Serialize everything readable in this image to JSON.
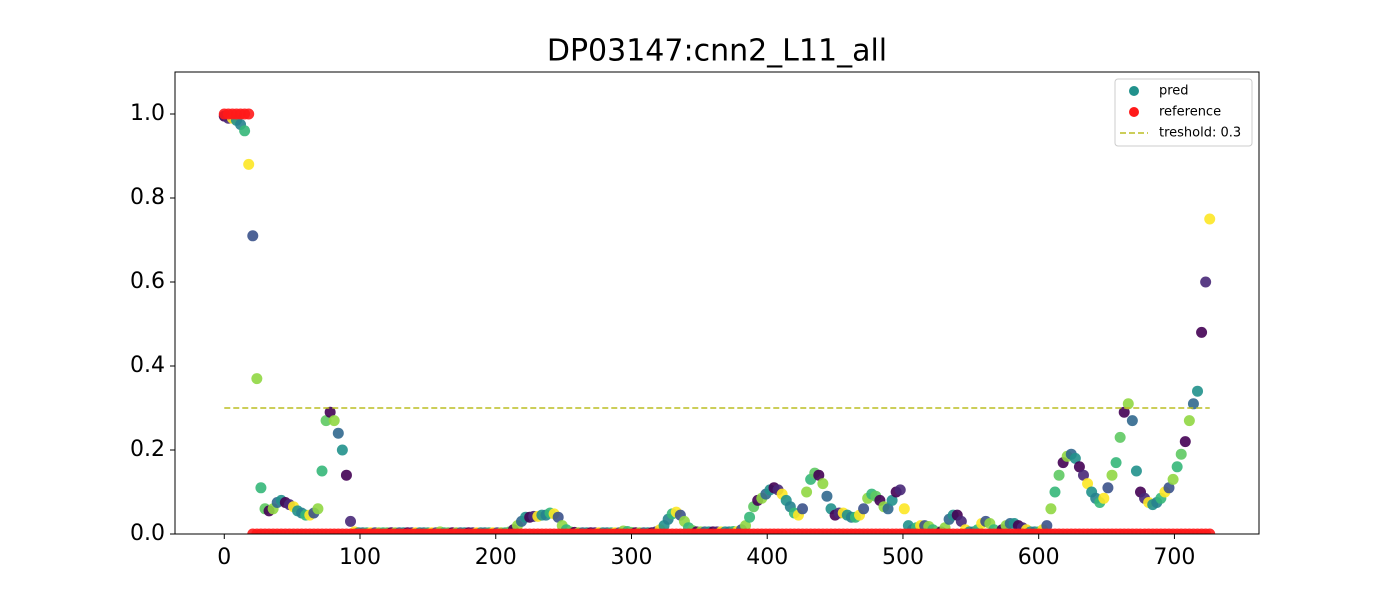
{
  "chart_data": {
    "type": "scatter",
    "title": "DP03147:cnn2_L11_all",
    "x": [
      0,
      3,
      6,
      9,
      12,
      15,
      18,
      21,
      24,
      27,
      30,
      33,
      36,
      39,
      42,
      45,
      48,
      51,
      54,
      57,
      60,
      63,
      66,
      69,
      72,
      75,
      78,
      81,
      84,
      87,
      90,
      93,
      96,
      99,
      102,
      105,
      108,
      111,
      114,
      117,
      120,
      123,
      126,
      129,
      132,
      135,
      138,
      141,
      144,
      147,
      150,
      153,
      156,
      159,
      162,
      165,
      168,
      171,
      174,
      177,
      180,
      183,
      186,
      189,
      192,
      195,
      198,
      201,
      204,
      207,
      210,
      213,
      216,
      219,
      222,
      225,
      228,
      231,
      234,
      237,
      240,
      243,
      246,
      249,
      252,
      255,
      258,
      261,
      264,
      267,
      270,
      273,
      276,
      279,
      282,
      285,
      288,
      291,
      294,
      297,
      300,
      303,
      306,
      309,
      312,
      315,
      318,
      321,
      324,
      327,
      330,
      333,
      336,
      339,
      342,
      345,
      348,
      351,
      354,
      357,
      360,
      363,
      366,
      369,
      372,
      375,
      378,
      381,
      384,
      387,
      390,
      393,
      396,
      399,
      402,
      405,
      408,
      411,
      414,
      417,
      420,
      423,
      426,
      429,
      432,
      435,
      438,
      441,
      444,
      447,
      450,
      453,
      456,
      459,
      462,
      465,
      468,
      471,
      474,
      477,
      480,
      483,
      486,
      489,
      492,
      495,
      498,
      501,
      504,
      507,
      510,
      513,
      516,
      519,
      522,
      525,
      528,
      531,
      534,
      537,
      540,
      543,
      546,
      549,
      552,
      555,
      558,
      561,
      564,
      567,
      570,
      573,
      576,
      579,
      582,
      585,
      588,
      591,
      594,
      597,
      600,
      603,
      606,
      609,
      612,
      615,
      618,
      621,
      624,
      627,
      630,
      633,
      636,
      639,
      642,
      645,
      648,
      651,
      654,
      657,
      660,
      663,
      666,
      669,
      672,
      675,
      678,
      681,
      684,
      687,
      690,
      693,
      696,
      699,
      702,
      705,
      708,
      711,
      714,
      717,
      720,
      723,
      726
    ],
    "series": [
      {
        "name": "pred",
        "color": "#21918c",
        "palette": [
          "#440154",
          "#3b528b",
          "#21918c",
          "#5ec962",
          "#fde725",
          "#31688e",
          "#35b779",
          "#482878",
          "#90d743",
          "#26828e"
        ],
        "values": [
          0.995,
          0.99,
          0.99,
          0.985,
          0.975,
          0.96,
          0.88,
          0.71,
          0.37,
          0.11,
          0.06,
          0.055,
          0.06,
          0.075,
          0.08,
          0.075,
          0.07,
          0.065,
          0.055,
          0.05,
          0.045,
          0.045,
          0.05,
          0.06,
          0.15,
          0.27,
          0.29,
          0.27,
          0.24,
          0.2,
          0.14,
          0.03,
          0.005,
          0.003,
          0.003,
          0.003,
          0.003,
          0.003,
          0.003,
          0.003,
          0.003,
          0.003,
          0.003,
          0.003,
          0.003,
          0.003,
          0.003,
          0.003,
          0.003,
          0.003,
          0.003,
          0.003,
          0.003,
          0.005,
          0.003,
          0.003,
          0.003,
          0.003,
          0.003,
          0.003,
          0.003,
          0.003,
          0.003,
          0.003,
          0.003,
          0.003,
          0.003,
          0.003,
          0.003,
          0.003,
          0.005,
          0.01,
          0.02,
          0.03,
          0.04,
          0.04,
          0.042,
          0.042,
          0.045,
          0.045,
          0.05,
          0.048,
          0.04,
          0.02,
          0.01,
          0.005,
          0.004,
          0.003,
          0.003,
          0.003,
          0.003,
          0.003,
          0.003,
          0.003,
          0.003,
          0.003,
          0.003,
          0.003,
          0.007,
          0.006,
          0.004,
          0.003,
          0.003,
          0.003,
          0.003,
          0.003,
          0.005,
          0.01,
          0.02,
          0.035,
          0.048,
          0.052,
          0.045,
          0.03,
          0.015,
          0.008,
          0.005,
          0.005,
          0.005,
          0.005,
          0.005,
          0.005,
          0.005,
          0.005,
          0.005,
          0.006,
          0.006,
          0.01,
          0.02,
          0.04,
          0.065,
          0.08,
          0.085,
          0.095,
          0.105,
          0.11,
          0.105,
          0.095,
          0.08,
          0.065,
          0.05,
          0.045,
          0.06,
          0.1,
          0.13,
          0.145,
          0.14,
          0.12,
          0.09,
          0.06,
          0.045,
          0.05,
          0.05,
          0.045,
          0.04,
          0.04,
          0.045,
          0.06,
          0.085,
          0.095,
          0.09,
          0.08,
          0.065,
          0.06,
          0.08,
          0.1,
          0.105,
          0.06,
          0.02,
          0.01,
          0.015,
          0.02,
          0.02,
          0.018,
          0.01,
          0.005,
          0.005,
          0.015,
          0.035,
          0.045,
          0.045,
          0.03,
          0.01,
          0.005,
          0.005,
          0.01,
          0.025,
          0.03,
          0.025,
          0.01,
          0.005,
          0.01,
          0.02,
          0.025,
          0.025,
          0.02,
          0.015,
          0.01,
          0.005,
          0.005,
          0.005,
          0.01,
          0.02,
          0.06,
          0.1,
          0.14,
          0.17,
          0.185,
          0.19,
          0.18,
          0.16,
          0.14,
          0.12,
          0.1,
          0.085,
          0.075,
          0.085,
          0.11,
          0.14,
          0.17,
          0.23,
          0.29,
          0.31,
          0.27,
          0.15,
          0.1,
          0.085,
          0.075,
          0.07,
          0.075,
          0.085,
          0.1,
          0.11,
          0.13,
          0.16,
          0.19,
          0.22,
          0.27,
          0.31,
          0.34,
          0.48,
          0.6,
          0.75
        ]
      },
      {
        "name": "reference",
        "color": "#ff1a1a",
        "values": [
          1,
          1,
          1,
          1,
          1,
          1,
          1,
          0,
          0,
          0,
          0,
          0,
          0,
          0,
          0,
          0,
          0,
          0,
          0,
          0,
          0,
          0,
          0,
          0,
          0,
          0,
          0,
          0,
          0,
          0,
          0,
          0,
          0,
          0,
          0,
          0,
          0,
          0,
          0,
          0,
          0,
          0,
          0,
          0,
          0,
          0,
          0,
          0,
          0,
          0,
          0,
          0,
          0,
          0,
          0,
          0,
          0,
          0,
          0,
          0,
          0,
          0,
          0,
          0,
          0,
          0,
          0,
          0,
          0,
          0,
          0,
          0,
          0,
          0,
          0,
          0,
          0,
          0,
          0,
          0,
          0,
          0,
          0,
          0,
          0,
          0,
          0,
          0,
          0,
          0,
          0,
          0,
          0,
          0,
          0,
          0,
          0,
          0,
          0,
          0,
          0,
          0,
          0,
          0,
          0,
          0,
          0,
          0,
          0,
          0,
          0,
          0,
          0,
          0,
          0,
          0,
          0,
          0,
          0,
          0,
          0,
          0,
          0,
          0,
          0,
          0,
          0,
          0,
          0,
          0,
          0,
          0,
          0,
          0,
          0,
          0,
          0,
          0,
          0,
          0,
          0,
          0,
          0,
          0,
          0,
          0,
          0,
          0,
          0,
          0,
          0,
          0,
          0,
          0,
          0,
          0,
          0,
          0,
          0,
          0,
          0,
          0,
          0,
          0,
          0,
          0,
          0,
          0,
          0,
          0,
          0,
          0,
          0,
          0,
          0,
          0,
          0,
          0,
          0,
          0,
          0,
          0,
          0,
          0,
          0,
          0,
          0,
          0,
          0,
          0,
          0,
          0,
          0,
          0,
          0,
          0,
          0,
          0,
          0,
          0,
          0,
          0,
          0,
          0,
          0,
          0,
          0,
          0,
          0,
          0,
          0,
          0,
          0,
          0,
          0,
          0,
          0,
          0,
          0,
          0,
          0,
          0,
          0,
          0,
          0,
          0,
          0,
          0,
          0,
          0,
          0,
          0,
          0,
          0,
          0,
          0,
          0,
          0,
          0,
          0,
          0,
          0,
          0
        ]
      }
    ],
    "threshold": {
      "value": 0.3,
      "xrange": [
        0,
        726
      ],
      "label": "treshold: 0.3",
      "color": "#bcbd22"
    },
    "xlim": [
      -36.3,
      762.3
    ],
    "ylim": [
      0,
      1.1
    ],
    "xticks": [
      0,
      100,
      200,
      300,
      400,
      500,
      600,
      700
    ],
    "yticks": [
      {
        "value": 0,
        "label": "0.0"
      },
      0.2,
      0.4,
      0.6,
      0.8,
      {
        "value": 1,
        "label": "1.0"
      }
    ],
    "grid": false,
    "legend": "upper right"
  }
}
